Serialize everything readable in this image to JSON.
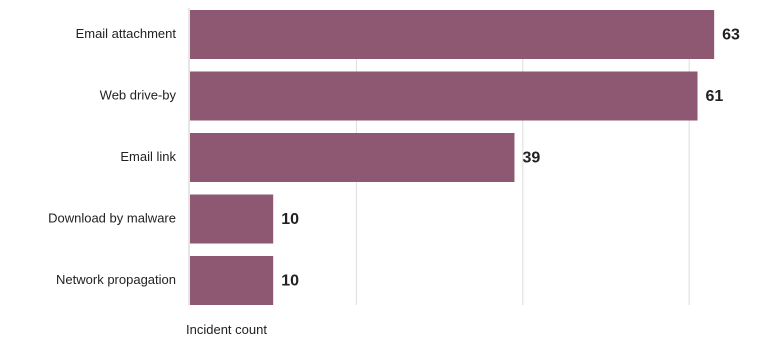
{
  "chart_data": {
    "type": "bar",
    "orientation": "horizontal",
    "categories": [
      "Email attachment",
      "Web drive-by",
      "Email link",
      "Download by malware",
      "Network propagation"
    ],
    "values": [
      63,
      61,
      39,
      10,
      10
    ],
    "xlabel": "Incident count",
    "ylabel": "",
    "xlim": [
      0,
      70
    ],
    "grid": true,
    "legend": "none",
    "data_labels": true,
    "colors": {
      "bar": "#8e5772",
      "gridline": "#dddddd",
      "axis": "#cccccc",
      "text": "#222222"
    }
  }
}
